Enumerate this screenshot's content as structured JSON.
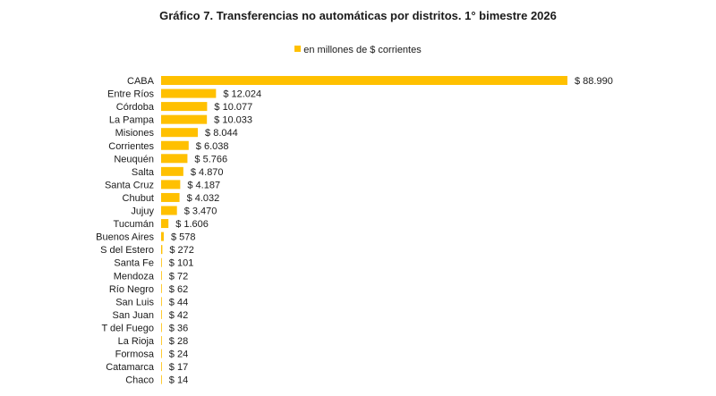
{
  "chart_data": {
    "type": "bar",
    "orientation": "horizontal",
    "title": "Gráfico 7. Transferencias no automáticas por distritos. 1° bimestre 2026",
    "legend": "en millones de $ corrientes",
    "legend_position": "top-center",
    "color": "#FFC000",
    "xlabel": "",
    "ylabel": "",
    "xlim": [
      0,
      88990
    ],
    "grid": false,
    "categories": [
      "CABA",
      "Entre Ríos",
      "Córdoba",
      "La Pampa",
      "Misiones",
      "Corrientes",
      "Neuquén",
      "Salta",
      "Santa Cruz",
      "Chubut",
      "Jujuy",
      "Tucumán",
      "Buenos Aires",
      "S del Estero",
      "Santa Fe",
      "Mendoza",
      "Río Negro",
      "San Luis",
      "San Juan",
      "T del Fuego",
      "La Rioja",
      "Formosa",
      "Catamarca",
      "Chaco"
    ],
    "values": [
      88990,
      12024,
      10077,
      10033,
      8044,
      6038,
      5766,
      4870,
      4187,
      4032,
      3470,
      1606,
      578,
      272,
      101,
      72,
      62,
      44,
      42,
      36,
      28,
      24,
      17,
      14
    ],
    "value_labels": [
      "$ 88.990",
      "$ 12.024",
      "$ 10.077",
      "$ 10.033",
      "$ 8.044",
      "$ 6.038",
      "$ 5.766",
      "$ 4.870",
      "$ 4.187",
      "$ 4.032",
      "$ 3.470",
      "$ 1.606",
      "$ 578",
      "$ 272",
      "$ 101",
      "$ 72",
      "$ 62",
      "$ 44",
      "$ 42",
      "$ 36",
      "$ 28",
      "$ 24",
      "$ 17",
      "$ 14"
    ]
  }
}
